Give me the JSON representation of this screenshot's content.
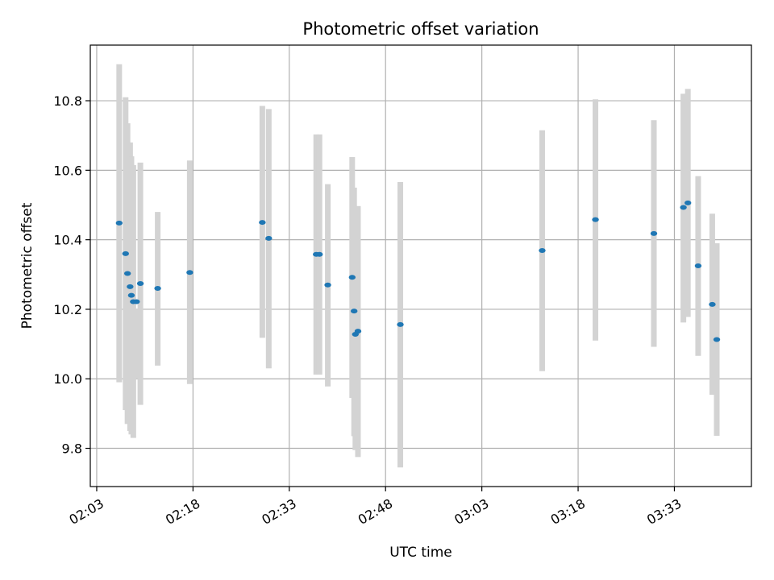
{
  "chart_data": {
    "type": "scatter",
    "title": "Photometric offset variation",
    "xlabel": "UTC time",
    "ylabel": "Photometric offset",
    "xlim": [
      "02:02",
      "03:45"
    ],
    "ylim": [
      9.69,
      10.96
    ],
    "xticks": [
      "02:03",
      "02:18",
      "02:33",
      "02:48",
      "03:03",
      "03:18",
      "03:33"
    ],
    "yticks": [
      "9.8",
      "10.0",
      "10.2",
      "10.4",
      "10.6",
      "10.8"
    ],
    "grid": true,
    "colors": {
      "marker": "#1f77b4",
      "errorbar": "#d3d3d3",
      "grid": "#b0b0b0"
    },
    "points": [
      {
        "x": "02:06:30",
        "y": 10.448,
        "ylow": 9.99,
        "yhigh": 10.905
      },
      {
        "x": "02:07:30",
        "y": 10.36,
        "ylow": 9.91,
        "yhigh": 10.81
      },
      {
        "x": "02:07:48",
        "y": 10.303,
        "ylow": 9.87,
        "yhigh": 10.735
      },
      {
        "x": "02:08:12",
        "y": 10.265,
        "ylow": 9.85,
        "yhigh": 10.68
      },
      {
        "x": "02:08:24",
        "y": 10.24,
        "ylow": 9.84,
        "yhigh": 10.64
      },
      {
        "x": "02:08:42",
        "y": 10.222,
        "ylow": 9.83,
        "yhigh": 10.615
      },
      {
        "x": "02:09:12",
        "y": 10.222,
        "ylow": 10.0,
        "yhigh": 10.2
      },
      {
        "x": "02:09:48",
        "y": 10.274,
        "ylow": 9.925,
        "yhigh": 10.622
      },
      {
        "x": "02:12:30",
        "y": 10.26,
        "ylow": 10.038,
        "yhigh": 10.48
      },
      {
        "x": "02:17:30",
        "y": 10.306,
        "ylow": 9.985,
        "yhigh": 10.628
      },
      {
        "x": "02:28:48",
        "y": 10.45,
        "ylow": 10.118,
        "yhigh": 10.785
      },
      {
        "x": "02:29:48",
        "y": 10.404,
        "ylow": 10.03,
        "yhigh": 10.776
      },
      {
        "x": "02:37:12",
        "y": 10.358,
        "ylow": 10.012,
        "yhigh": 10.703
      },
      {
        "x": "02:37:42",
        "y": 10.358,
        "ylow": 10.012,
        "yhigh": 10.703
      },
      {
        "x": "02:39:00",
        "y": 10.27,
        "ylow": 9.978,
        "yhigh": 10.56
      },
      {
        "x": "02:42:48",
        "y": 10.292,
        "ylow": 9.945,
        "yhigh": 10.638
      },
      {
        "x": "02:43:06",
        "y": 10.195,
        "ylow": 9.835,
        "yhigh": 10.55
      },
      {
        "x": "02:43:18",
        "y": 10.128,
        "ylow": 9.795,
        "yhigh": 10.46
      },
      {
        "x": "02:43:42",
        "y": 10.137,
        "ylow": 9.775,
        "yhigh": 10.497
      },
      {
        "x": "02:50:18",
        "y": 10.156,
        "ylow": 9.745,
        "yhigh": 10.566
      },
      {
        "x": "03:12:24",
        "y": 10.369,
        "ylow": 10.022,
        "yhigh": 10.715
      },
      {
        "x": "03:20:42",
        "y": 10.458,
        "ylow": 10.11,
        "yhigh": 10.804
      },
      {
        "x": "03:29:48",
        "y": 10.418,
        "ylow": 10.092,
        "yhigh": 10.744
      },
      {
        "x": "03:34:24",
        "y": 10.493,
        "ylow": 10.162,
        "yhigh": 10.82
      },
      {
        "x": "03:35:06",
        "y": 10.506,
        "ylow": 10.178,
        "yhigh": 10.834
      },
      {
        "x": "03:36:42",
        "y": 10.325,
        "ylow": 10.066,
        "yhigh": 10.583
      },
      {
        "x": "03:38:54",
        "y": 10.214,
        "ylow": 9.954,
        "yhigh": 10.475
      },
      {
        "x": "03:39:36",
        "y": 10.113,
        "ylow": 9.836,
        "yhigh": 10.39
      }
    ]
  }
}
